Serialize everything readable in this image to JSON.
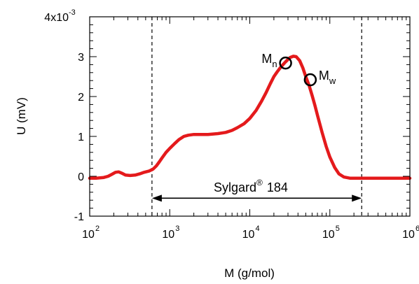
{
  "chart_data": {
    "type": "line",
    "xlabel": "M (g/mol)",
    "ylabel": "U (mV)",
    "x_scale": "log",
    "xlim": [
      100,
      1000000
    ],
    "ylim": [
      -1,
      4
    ],
    "y_tick_values": [
      -1,
      0,
      1,
      2,
      3,
      4
    ],
    "y_tick_labels": [
      "-1",
      "0",
      "1",
      "2",
      "3",
      "4x10"
    ],
    "y_top_exponent": "-3",
    "y_tick_unit": 0.001,
    "x_tick_values": [
      100,
      1000,
      10000,
      100000,
      1000000
    ],
    "x_tick_bases": [
      "10",
      "10",
      "10",
      "10",
      "10"
    ],
    "x_tick_exponents": [
      "2",
      "3",
      "4",
      "5",
      "6"
    ],
    "grid": false,
    "series_color": "#e41a1c",
    "series": [
      {
        "x": [
          100,
          120,
          150,
          170,
          190,
          210,
          230,
          250,
          280,
          320,
          370,
          420,
          480,
          550,
          620,
          680,
          740,
          800,
          900,
          1000,
          1150,
          1300,
          1500,
          1700,
          2000,
          2400,
          3000,
          4000,
          5000,
          6000,
          7000,
          8500,
          10000,
          12000,
          14000,
          16000,
          18000,
          20000,
          22000,
          24000,
          26000,
          28000,
          30000,
          32000,
          35000,
          38000,
          42000,
          46000,
          50000,
          55000,
          60000,
          65000,
          70000,
          80000,
          90000,
          100000,
          115000,
          130000,
          150000,
          180000,
          220000,
          260000,
          300000,
          400000,
          600000,
          1000000
        ],
        "y": [
          -0.05,
          -0.05,
          -0.03,
          0.0,
          0.05,
          0.1,
          0.11,
          0.08,
          0.03,
          0.02,
          0.03,
          0.06,
          0.1,
          0.13,
          0.18,
          0.26,
          0.36,
          0.46,
          0.6,
          0.7,
          0.82,
          0.92,
          1.0,
          1.03,
          1.05,
          1.05,
          1.05,
          1.07,
          1.1,
          1.15,
          1.22,
          1.32,
          1.45,
          1.65,
          1.88,
          2.1,
          2.32,
          2.5,
          2.62,
          2.72,
          2.8,
          2.87,
          2.93,
          2.98,
          3.01,
          3.0,
          2.9,
          2.72,
          2.5,
          2.28,
          2.03,
          1.78,
          1.53,
          1.1,
          0.75,
          0.48,
          0.22,
          0.06,
          -0.02,
          -0.05,
          -0.05,
          -0.05,
          -0.05,
          -0.05,
          -0.05,
          -0.05
        ]
      }
    ],
    "reference_lines": [
      {
        "axis": "x",
        "value": 600,
        "style": "dashed"
      },
      {
        "axis": "x",
        "value": 250000,
        "style": "dashed"
      }
    ],
    "range_arrow": {
      "x_start": 600,
      "x_end": 250000,
      "y": -0.55
    },
    "annotations": [
      {
        "marker": "circle",
        "x": 28000,
        "y": 2.84,
        "label": "M",
        "label_sub": "n"
      },
      {
        "marker": "circle",
        "x": 57000,
        "y": 2.42,
        "label": "M",
        "label_sub": "w"
      }
    ],
    "range_label": "Sylgard",
    "range_label_sup": "®",
    "range_label_suffix": "184"
  }
}
